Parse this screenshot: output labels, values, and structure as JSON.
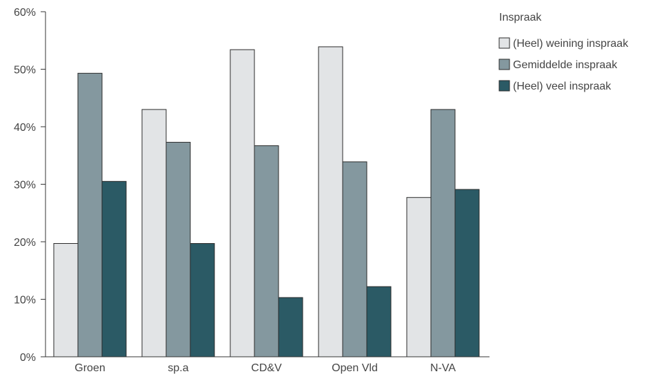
{
  "chart_data": {
    "type": "bar",
    "categories": [
      "Groen",
      "sp.a",
      "CD&V",
      "Open Vld",
      "N-VA"
    ],
    "series": [
      {
        "name": "(Heel) weining inspraak",
        "color": "#e2e4e6",
        "values": [
          19.7,
          43.0,
          53.4,
          53.9,
          27.7
        ]
      },
      {
        "name": "Gemiddelde inspraak",
        "color": "#84989f",
        "values": [
          49.3,
          37.3,
          36.7,
          33.9,
          43.0
        ]
      },
      {
        "name": "(Heel) veel inspraak",
        "color": "#2b5a65",
        "values": [
          30.5,
          19.7,
          10.3,
          12.2,
          29.1
        ]
      }
    ],
    "ylim": [
      0,
      60
    ],
    "yticks": [
      "0%",
      "10%",
      "20%",
      "30%",
      "40%",
      "50%",
      "60%"
    ],
    "ytick_values": [
      0,
      10,
      20,
      30,
      40,
      50,
      60
    ],
    "legend": {
      "title": "Inspraak",
      "position": "top-right"
    },
    "grid": false,
    "title": "",
    "xlabel": "",
    "ylabel": ""
  }
}
